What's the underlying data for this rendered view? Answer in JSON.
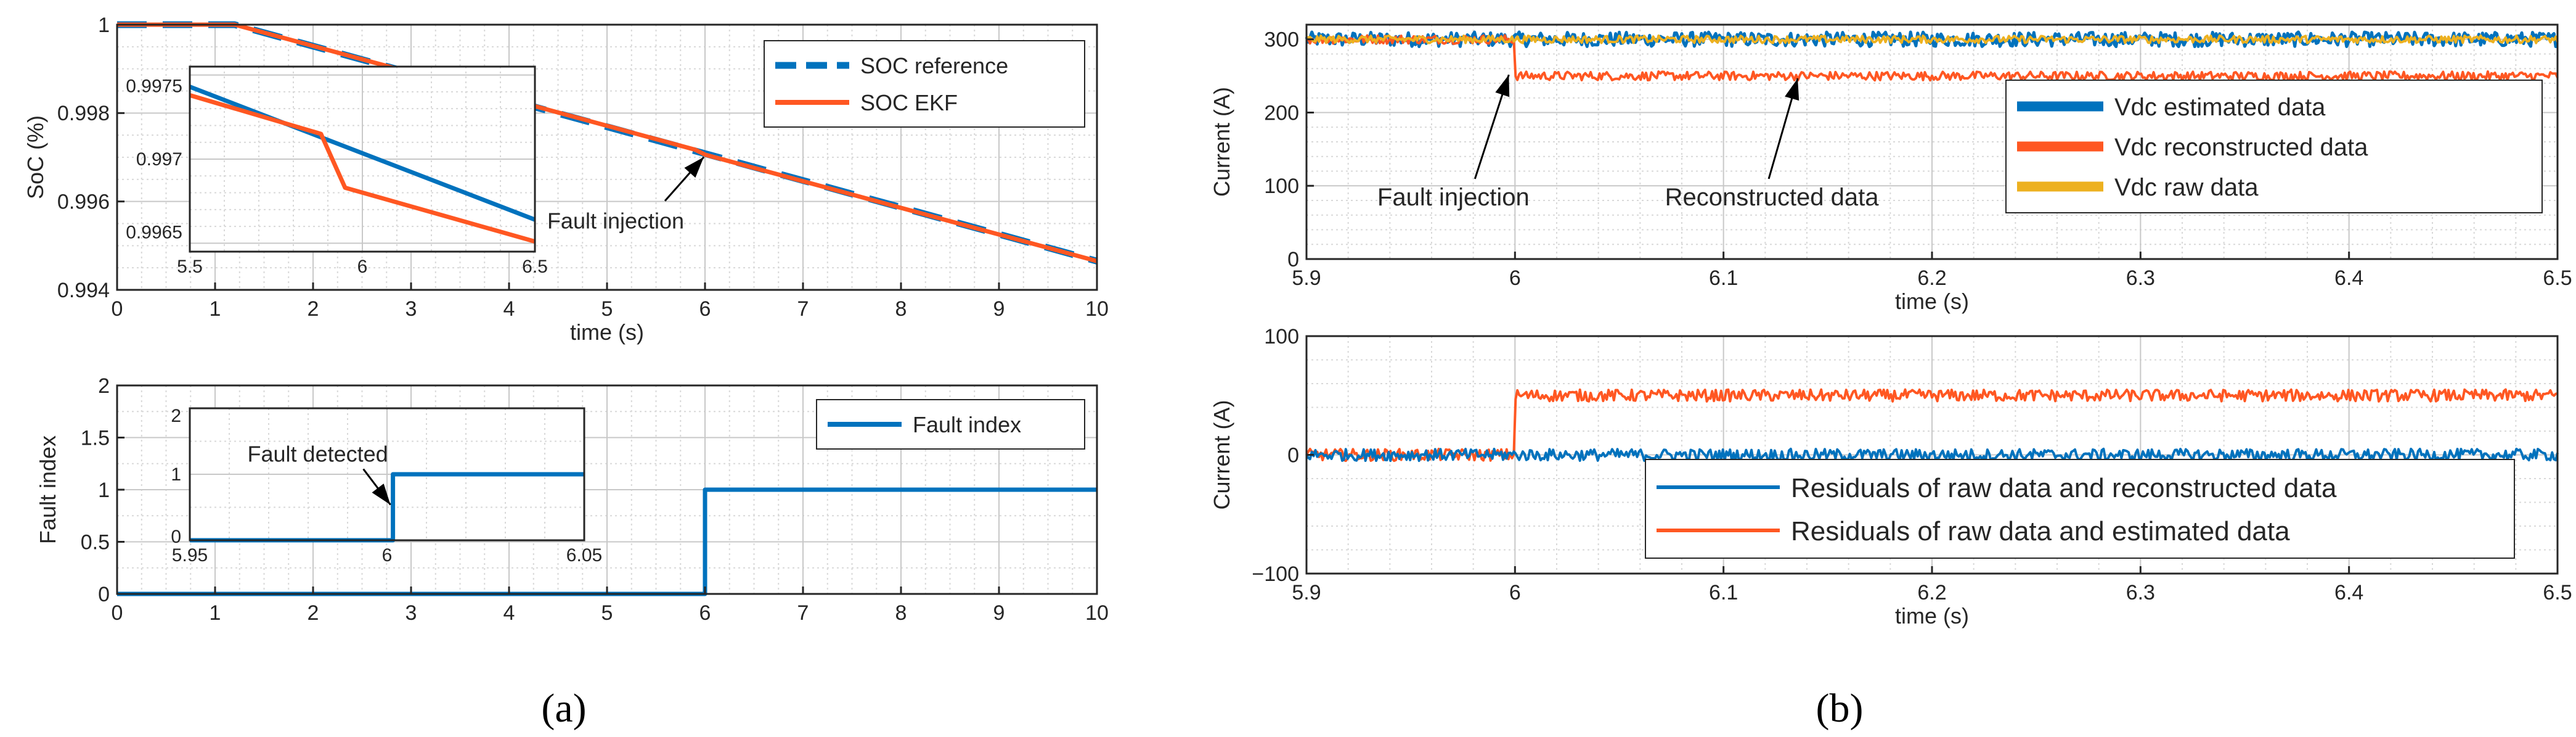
{
  "captions": {
    "a": "(a)",
    "b": "(b)"
  },
  "chart_data": [
    {
      "id": "soc",
      "type": "line",
      "xlabel": "time (s)",
      "ylabel": "SoC (%)",
      "xlim": [
        0,
        10
      ],
      "ylim": [
        0.994,
        1.0
      ],
      "xticks": [
        0,
        1,
        2,
        3,
        4,
        5,
        6,
        7,
        8,
        9,
        10
      ],
      "yticks": [
        0.994,
        0.996,
        0.998,
        1.0
      ],
      "ytick_labels": [
        "0.994",
        "0.996",
        "0.998",
        "1"
      ],
      "grid": true,
      "legend": "top-right",
      "series": [
        {
          "name": "SOC reference",
          "color": "#0072bd",
          "style": "dashed",
          "x": [
            0,
            1.2,
            10
          ],
          "y": [
            1.0,
            1.0,
            0.99465
          ]
        },
        {
          "name": "SOC EKF",
          "color": "#ff5722",
          "style": "solid",
          "x": [
            0,
            1.2,
            5.9,
            6.0,
            10
          ],
          "y": [
            1.0,
            1.0,
            0.99717,
            0.99706,
            0.99465
          ]
        }
      ],
      "annotation": {
        "text": "Fault injection",
        "x": 6.0,
        "y": 0.99706
      },
      "inset": {
        "xlim": [
          5.5,
          6.5
        ],
        "ylim": [
          0.99645,
          0.99755
        ],
        "xticks": [
          5.5,
          6,
          6.5
        ],
        "xtick_labels": [
          "5.5",
          "6",
          "6.5"
        ],
        "yticks": [
          0.9965,
          0.997,
          0.9975
        ],
        "ytick_labels": [
          "0.9965",
          "0.997",
          "0.9975"
        ],
        "series": [
          {
            "name": "SOC reference",
            "x": [
              5.5,
              6.5
            ],
            "y": [
              0.99743,
              0.99664
            ]
          },
          {
            "name": "SOC EKF",
            "x": [
              5.5,
              5.88,
              5.95,
              6.5
            ],
            "y": [
              0.99738,
              0.99715,
              0.99683,
              0.99651
            ]
          }
        ]
      }
    },
    {
      "id": "fault",
      "type": "line",
      "xlabel": "",
      "ylabel": "Fault index",
      "xlim": [
        0,
        10
      ],
      "ylim": [
        0,
        2
      ],
      "xticks": [
        0,
        1,
        2,
        3,
        4,
        5,
        6,
        7,
        8,
        9,
        10
      ],
      "yticks": [
        0,
        0.5,
        1,
        1.5,
        2
      ],
      "ytick_labels": [
        "0",
        "0.5",
        "1",
        "1.5",
        "2"
      ],
      "grid": true,
      "legend": "top-right",
      "series": [
        {
          "name": "Fault index",
          "color": "#0072bd",
          "style": "solid",
          "x": [
            0,
            6.0,
            6.0,
            10
          ],
          "y": [
            0,
            0,
            1,
            1
          ]
        }
      ],
      "inset": {
        "xlim": [
          5.95,
          6.05
        ],
        "ylim": [
          0,
          2
        ],
        "xticks": [
          5.95,
          6,
          6.05
        ],
        "xtick_labels": [
          "5.95",
          "6",
          "6.05"
        ],
        "yticks": [
          0,
          1,
          2
        ],
        "ytick_labels": [
          "0",
          "1",
          "2"
        ],
        "series": [
          {
            "name": "Fault index",
            "x": [
              5.95,
              6.0015,
              6.0015,
              6.05
            ],
            "y": [
              0,
              0,
              1,
              1
            ]
          }
        ],
        "annotation": {
          "text": "Fault detected",
          "x": 6.0015,
          "y": 0.5
        }
      }
    },
    {
      "id": "vdc",
      "type": "line",
      "xlabel": "time (s)",
      "ylabel": "Current (A)",
      "xlim": [
        5.9,
        6.5
      ],
      "ylim": [
        0,
        320
      ],
      "xticks": [
        5.9,
        6.0,
        6.1,
        6.2,
        6.3,
        6.4,
        6.5
      ],
      "xtick_labels": [
        "5.9",
        "6",
        "6.1",
        "6.2",
        "6.3",
        "6.4",
        "6.5"
      ],
      "yticks": [
        0,
        100,
        200,
        300
      ],
      "ytick_labels": [
        "0",
        "100",
        "200",
        "300"
      ],
      "grid": true,
      "legend": "bottom-right",
      "series": [
        {
          "name": "Vdc estimated data",
          "color": "#0072bd",
          "base": 300,
          "noise": 10
        },
        {
          "name": "Vdc reconstructed data",
          "color": "#ff5722",
          "base_before": 300,
          "base_after": 250,
          "step_at": 6.0,
          "noise": 6
        },
        {
          "name": "Vdc raw data",
          "color": "#edb120",
          "base": 300,
          "noise": 5
        }
      ],
      "annotations": [
        {
          "text": "Fault injection",
          "x": 6.0,
          "y": 255
        },
        {
          "text": "Reconstructed data",
          "x": 6.135,
          "y": 250
        }
      ]
    },
    {
      "id": "residuals",
      "type": "line",
      "xlabel": "time (s)",
      "ylabel": "Current (A)",
      "xlim": [
        5.9,
        6.5
      ],
      "ylim": [
        -100,
        100
      ],
      "xticks": [
        5.9,
        6.0,
        6.1,
        6.2,
        6.3,
        6.4,
        6.5
      ],
      "xtick_labels": [
        "5.9",
        "6",
        "6.1",
        "6.2",
        "6.3",
        "6.4",
        "6.5"
      ],
      "yticks": [
        -100,
        0,
        100
      ],
      "ytick_labels": [
        "−100",
        "0",
        "100"
      ],
      "grid": true,
      "legend": "bottom-right",
      "series": [
        {
          "name": "Residuals of raw data and reconstructed data",
          "color": "#0072bd",
          "base": 0,
          "noise": 5
        },
        {
          "name": "Residuals of raw data and estimated data",
          "color": "#ff5722",
          "base_before": 0,
          "base_after": 50,
          "step_at": 6.0,
          "noise": 5
        }
      ]
    }
  ]
}
